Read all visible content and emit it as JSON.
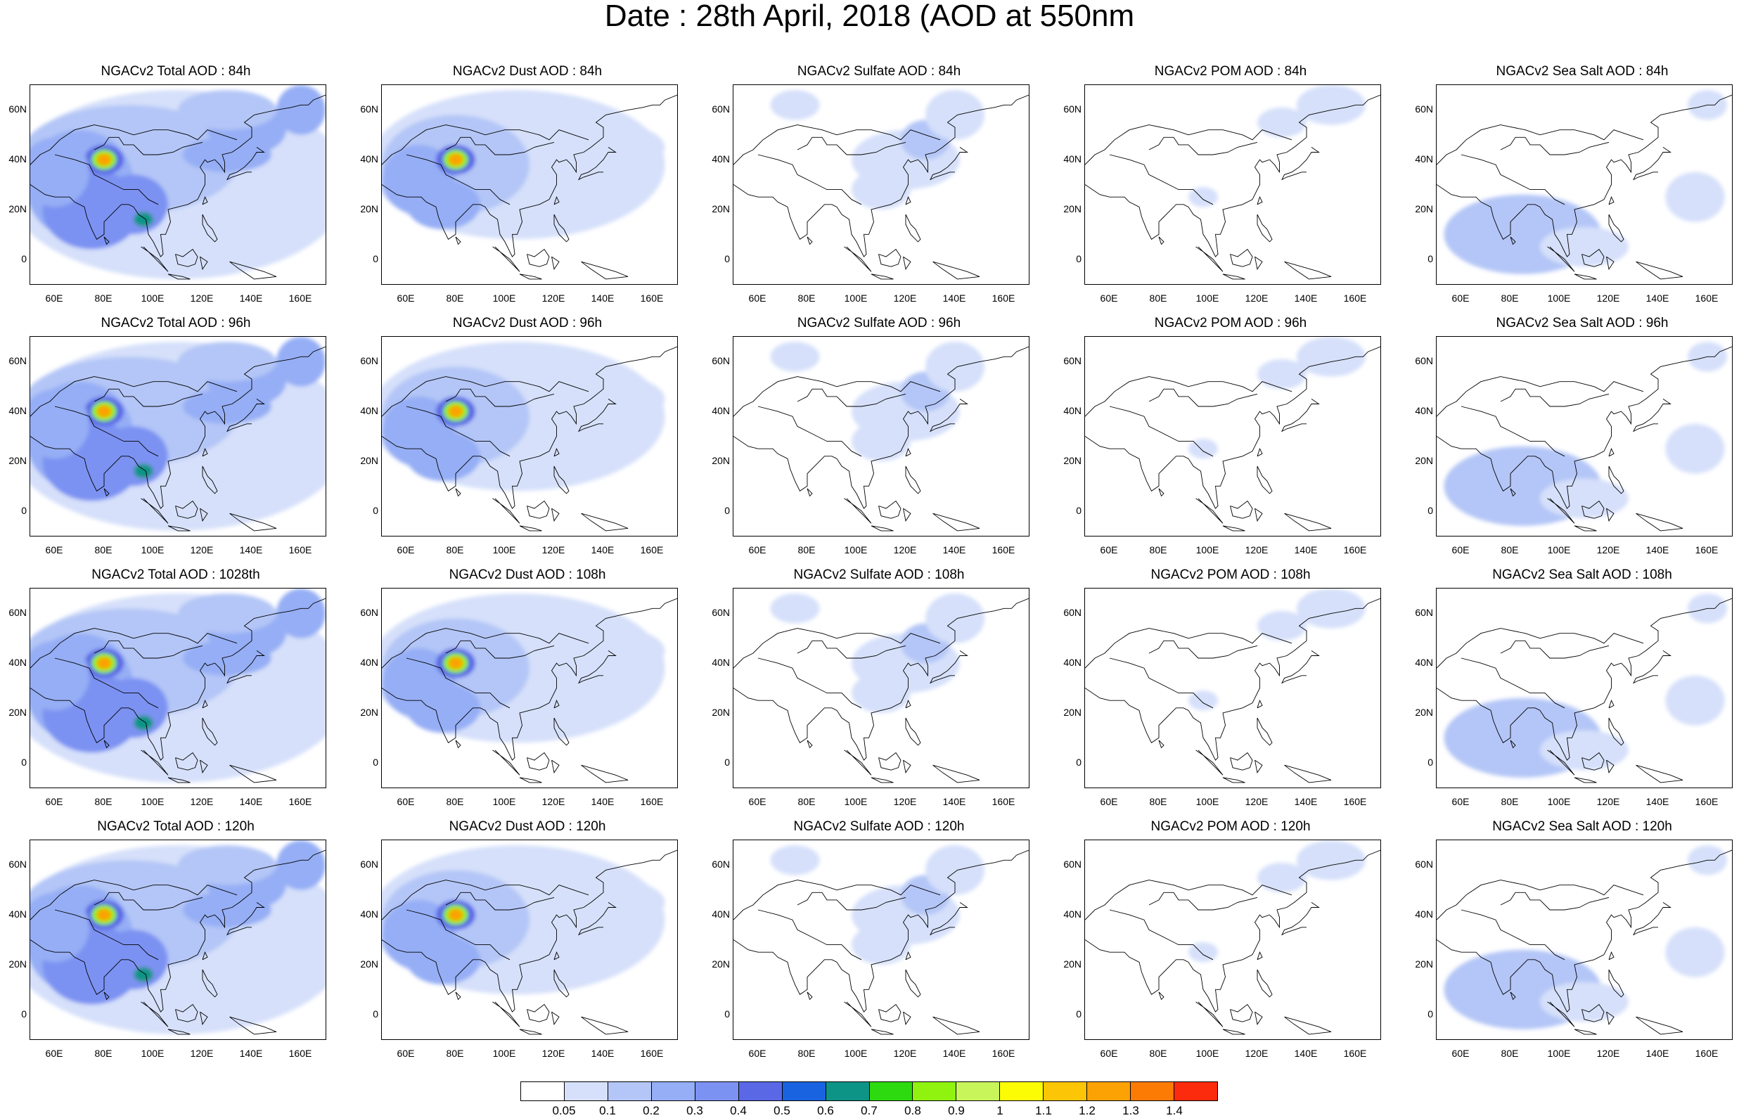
{
  "title": "Date : 28th April, 2018 (AOD at 550nm",
  "map_axes": {
    "lat_ticks": [
      "60N",
      "40N",
      "20N",
      "0"
    ],
    "lon_ticks": [
      "60E",
      "80E",
      "100E",
      "120E",
      "140E",
      "160E"
    ],
    "lat_values": [
      60,
      40,
      20,
      0
    ],
    "lon_values": [
      60,
      80,
      100,
      120,
      140,
      160
    ],
    "lon_range": [
      50,
      170
    ],
    "lat_range": [
      -10,
      70
    ]
  },
  "panels": [
    {
      "title": "NGACv2 Total AOD : 84h",
      "species": "total"
    },
    {
      "title": "NGACv2 Dust AOD : 84h",
      "species": "dust"
    },
    {
      "title": "NGACv2 Sulfate AOD : 84h",
      "species": "sulfate"
    },
    {
      "title": "NGACv2 POM AOD : 84h",
      "species": "pom"
    },
    {
      "title": "NGACv2 Sea Salt AOD : 84h",
      "species": "seasalt"
    },
    {
      "title": "NGACv2 Total AOD : 96h",
      "species": "total"
    },
    {
      "title": "NGACv2 Dust AOD : 96h",
      "species": "dust"
    },
    {
      "title": "NGACv2 Sulfate AOD : 96h",
      "species": "sulfate"
    },
    {
      "title": "NGACv2 POM AOD : 96h",
      "species": "pom"
    },
    {
      "title": "NGACv2 Sea Salt AOD : 96h",
      "species": "seasalt"
    },
    {
      "title": "NGACv2 Total AOD : 1028th",
      "species": "total"
    },
    {
      "title": "NGACv2 Dust AOD : 108h",
      "species": "dust"
    },
    {
      "title": "NGACv2 Sulfate AOD : 108h",
      "species": "sulfate"
    },
    {
      "title": "NGACv2 POM AOD : 108h",
      "species": "pom"
    },
    {
      "title": "NGACv2 Sea Salt AOD : 108h",
      "species": "seasalt"
    },
    {
      "title": "NGACv2 Total AOD : 120h",
      "species": "total"
    },
    {
      "title": "NGACv2 Dust AOD : 120h",
      "species": "dust"
    },
    {
      "title": "NGACv2 Sulfate AOD : 120h",
      "species": "sulfate"
    },
    {
      "title": "NGACv2 POM AOD : 120h",
      "species": "pom"
    },
    {
      "title": "NGACv2 Sea Salt  AOD : 120h",
      "species": "seasalt"
    }
  ],
  "colorbar": {
    "labels": [
      "0.05",
      "0.1",
      "0.2",
      "0.3",
      "0.4",
      "0.5",
      "0.6",
      "0.7",
      "0.8",
      "0.9",
      "1",
      "1.1",
      "1.2",
      "1.3",
      "1.4"
    ],
    "colors": [
      "#ffffff",
      "#d6e0fa",
      "#b4c6f7",
      "#95aef5",
      "#7c92f2",
      "#5a68e6",
      "#1a63e0",
      "#0d9487",
      "#2dd90f",
      "#8ff20f",
      "#c8f55a",
      "#fcfc05",
      "#fcc505",
      "#fca205",
      "#fc7b05",
      "#fc2b0d"
    ]
  }
}
